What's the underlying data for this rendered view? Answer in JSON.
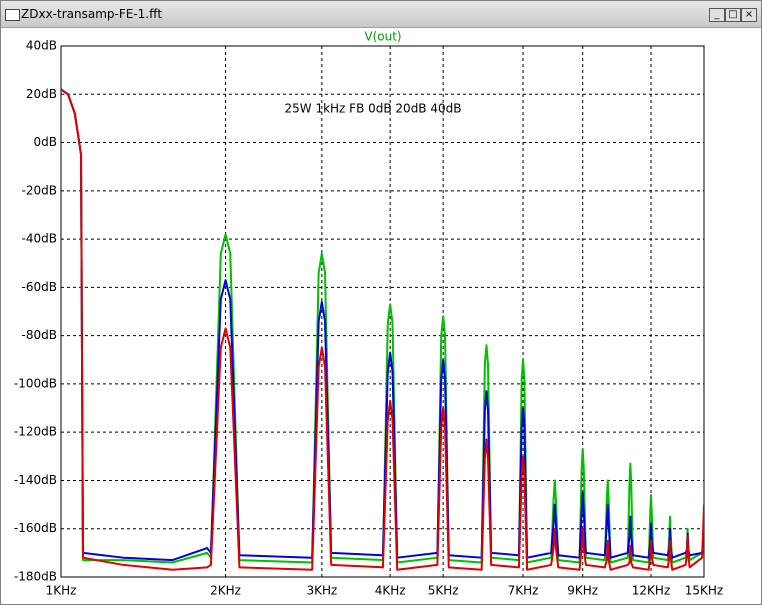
{
  "window": {
    "title": "ZDxx-transamp-FE-1.fft"
  },
  "chart_data": {
    "type": "line",
    "title": "V(out)",
    "title_color": "#00a000",
    "annotation": "25W 1kHz FB 0dB 20dB 40dB",
    "xscale": "log",
    "grid": true,
    "xlim": [
      1000,
      15000
    ],
    "ylim": [
      -180,
      40
    ],
    "xticks": [
      {
        "value": 1000,
        "label": "1KHz"
      },
      {
        "value": 2000,
        "label": "2KHz"
      },
      {
        "value": 3000,
        "label": "3KHz"
      },
      {
        "value": 4000,
        "label": "4KHz"
      },
      {
        "value": 5000,
        "label": "5KHz"
      },
      {
        "value": 7000,
        "label": "7KHz"
      },
      {
        "value": 9000,
        "label": "9KHz"
      },
      {
        "value": 12000,
        "label": "12KHz"
      },
      {
        "value": 15000,
        "label": "15KHz"
      }
    ],
    "yticks": [
      {
        "value": 40,
        "label": "40dB"
      },
      {
        "value": 20,
        "label": "20dB"
      },
      {
        "value": 0,
        "label": "0dB"
      },
      {
        "value": -20,
        "label": "-20dB"
      },
      {
        "value": -40,
        "label": "-40dB"
      },
      {
        "value": -60,
        "label": "-60dB"
      },
      {
        "value": -80,
        "label": "-80dB"
      },
      {
        "value": -100,
        "label": "-100dB"
      },
      {
        "value": -120,
        "label": "-120dB"
      },
      {
        "value": -140,
        "label": "-140dB"
      },
      {
        "value": -160,
        "label": "-160dB"
      },
      {
        "value": -180,
        "label": "-180dB"
      }
    ],
    "x": [
      1000,
      1030,
      1060,
      1088,
      1097,
      1300,
      1600,
      1850,
      1880,
      1960,
      2000,
      2040,
      2120,
      2880,
      2960,
      3000,
      3040,
      3120,
      3880,
      3960,
      4000,
      4040,
      4120,
      4880,
      4960,
      5000,
      5040,
      5120,
      5880,
      5960,
      6000,
      6040,
      6120,
      6880,
      6960,
      7000,
      7040,
      7120,
      7880,
      7960,
      8000,
      8040,
      8120,
      8880,
      8960,
      9000,
      9040,
      9120,
      9880,
      9960,
      10000,
      10040,
      10120,
      10880,
      10960,
      11000,
      11040,
      11120,
      11880,
      11960,
      12000,
      12040,
      12120,
      12880,
      12960,
      13000,
      13040,
      13120,
      13880,
      13960,
      14000,
      14040,
      14120,
      14880,
      14960,
      15000
    ],
    "series": [
      {
        "color": "#00c000",
        "values": [
          22,
          20,
          12,
          -5,
          -173,
          -173,
          -174,
          -170,
          -172,
          -46,
          -38,
          -46,
          -173,
          -174,
          -54,
          -46,
          -54,
          -172,
          -173,
          -75,
          -67,
          -75,
          -174,
          -172,
          -80,
          -72,
          -80,
          -173,
          -174,
          -92,
          -84,
          -92,
          -172,
          -173,
          -98,
          -90,
          -98,
          -174,
          -172,
          -148,
          -140,
          -148,
          -173,
          -174,
          -135,
          -127,
          -135,
          -172,
          -173,
          -148,
          -140,
          -148,
          -174,
          -172,
          -141,
          -133,
          -141,
          -173,
          -174,
          -154,
          -146,
          -154,
          -172,
          -173,
          -163,
          -155,
          -163,
          -174,
          -172,
          -168,
          -160,
          -168,
          -173,
          -170,
          -168,
          -160
        ]
      },
      {
        "color": "#0000e0",
        "values": [
          22,
          20,
          12,
          -5,
          -170,
          -172,
          -173,
          -168,
          -170,
          -65,
          -57,
          -65,
          -171,
          -172,
          -74,
          -66,
          -74,
          -170,
          -171,
          -95,
          -87,
          -95,
          -172,
          -170,
          -98,
          -90,
          -98,
          -171,
          -172,
          -111,
          -103,
          -111,
          -170,
          -171,
          -118,
          -110,
          -118,
          -172,
          -170,
          -158,
          -150,
          -158,
          -171,
          -172,
          -153,
          -145,
          -153,
          -170,
          -171,
          -158,
          -150,
          -158,
          -172,
          -170,
          -163,
          -155,
          -163,
          -171,
          -172,
          -166,
          -158,
          -166,
          -170,
          -171,
          -168,
          -160,
          -168,
          -172,
          -170,
          -169,
          -162,
          -169,
          -171,
          -170,
          -166,
          -158
        ]
      },
      {
        "color": "#e00000",
        "values": [
          22,
          20,
          12,
          -5,
          -172,
          -175,
          -177,
          -176,
          -175,
          -85,
          -77,
          -85,
          -176,
          -177,
          -93,
          -85,
          -93,
          -175,
          -176,
          -115,
          -107,
          -115,
          -177,
          -175,
          -118,
          -110,
          -118,
          -176,
          -177,
          -131,
          -123,
          -131,
          -175,
          -176,
          -138,
          -130,
          -138,
          -177,
          -175,
          -168,
          -160,
          -168,
          -176,
          -177,
          -168,
          -160,
          -168,
          -175,
          -176,
          -173,
          -165,
          -173,
          -177,
          -175,
          -174,
          -167,
          -174,
          -176,
          -177,
          -172,
          -165,
          -172,
          -175,
          -176,
          -172,
          -165,
          -172,
          -177,
          -175,
          -171,
          -163,
          -171,
          -176,
          -172,
          -158,
          -150
        ]
      }
    ]
  }
}
